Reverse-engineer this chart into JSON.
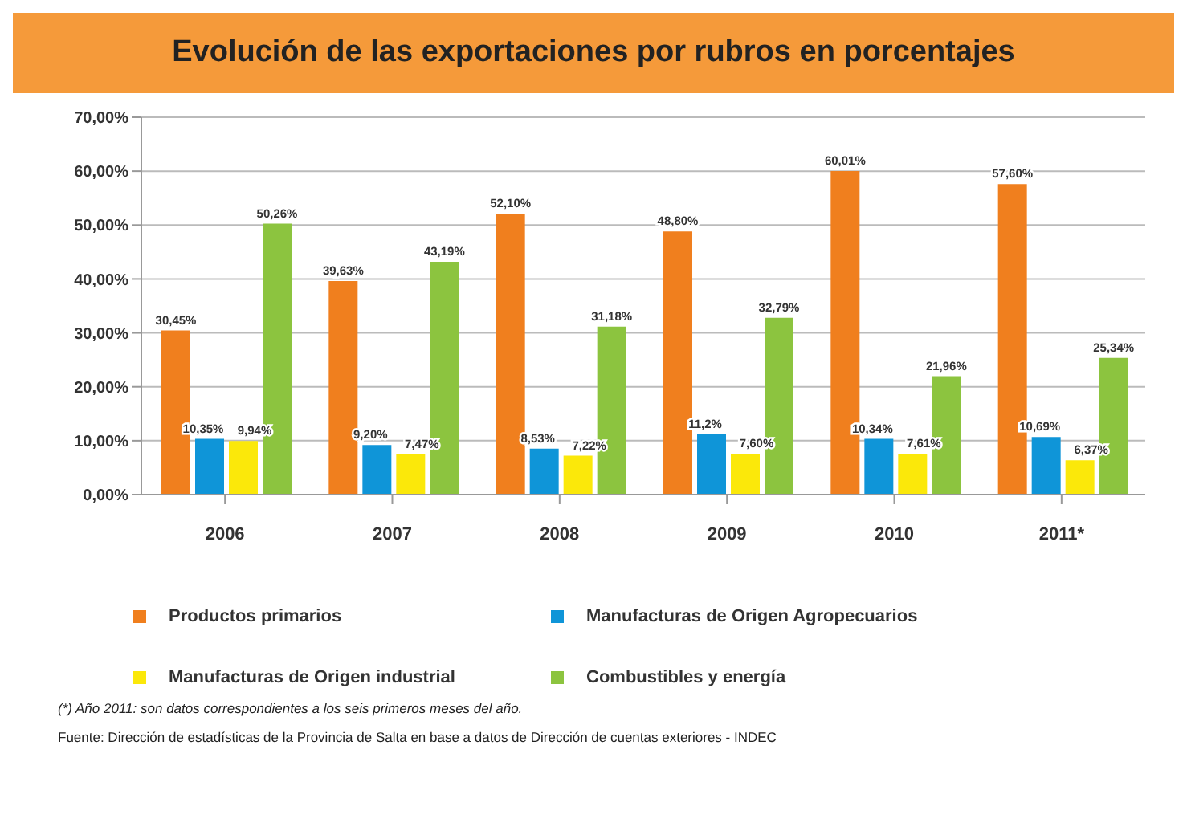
{
  "chart_data": {
    "type": "bar",
    "title": "Evolución de las exportaciones por rubros en porcentajes",
    "categories": [
      "2006",
      "2007",
      "2008",
      "2009",
      "2010",
      "2011*"
    ],
    "series": [
      {
        "name": "Productos primarios",
        "color": "#f07f1e",
        "values": [
          30.45,
          39.63,
          52.1,
          48.8,
          60.01,
          57.6
        ],
        "value_labels": [
          "30,45%",
          "39,63%",
          "52,10%",
          "48,80%",
          "60,01%",
          "57,60%"
        ]
      },
      {
        "name": "Manufacturas de Origen Agropecuarios",
        "color": "#0f95d8",
        "values": [
          10.35,
          9.2,
          8.53,
          11.2,
          10.34,
          10.69
        ],
        "value_labels": [
          "10,35%",
          "9,20%",
          "8,53%",
          "11,2%",
          "10,34%",
          "10,69%"
        ]
      },
      {
        "name": "Manufacturas de Origen industrial",
        "color": "#fbe80a",
        "values": [
          9.94,
          7.47,
          7.22,
          7.6,
          7.61,
          6.37
        ],
        "value_labels": [
          "9,94%",
          "7,47%",
          "7,22%",
          "7,60%",
          "7,61%",
          "6,37%"
        ]
      },
      {
        "name": "Combustibles y energía",
        "color": "#8cc43f",
        "values": [
          50.26,
          43.19,
          31.18,
          32.79,
          21.96,
          25.34
        ],
        "value_labels": [
          "50,26%",
          "43,19%",
          "31,18%",
          "32,79%",
          "21,96%",
          "25,34%"
        ]
      }
    ],
    "ylim": [
      0,
      70
    ],
    "yticks": [
      {
        "value": 0,
        "label": "0,00%"
      },
      {
        "value": 10,
        "label": "10,00%"
      },
      {
        "value": 20,
        "label": "20,00%"
      },
      {
        "value": 30,
        "label": "30,00%"
      },
      {
        "value": 40,
        "label": "40,00%"
      },
      {
        "value": 50,
        "label": "50,00%"
      },
      {
        "value": 60,
        "label": "60,00%"
      },
      {
        "value": 70,
        "label": "70,00%"
      }
    ],
    "grid": "y",
    "legend": "bottom",
    "annotations": [
      "(*) Año 2011: son datos correspondientes a los seis primeros meses del año.",
      "Fuente: Dirección de estadísticas de la Provincia de Salta en base a datos de Dirección de cuentas exteriores - INDEC"
    ]
  }
}
